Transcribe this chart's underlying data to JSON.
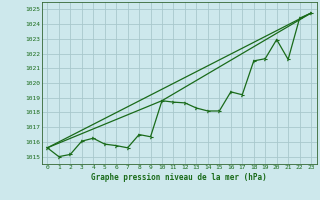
{
  "title": "Graphe pression niveau de la mer (hPa)",
  "background_color": "#cde8ec",
  "grid_color": "#a8c8cc",
  "line_color": "#1a6b1a",
  "text_color": "#1a6b1a",
  "xlim": [
    -0.5,
    23.5
  ],
  "ylim": [
    1014.5,
    1025.5
  ],
  "yticks": [
    1015,
    1016,
    1017,
    1018,
    1019,
    1020,
    1021,
    1022,
    1023,
    1024,
    1025
  ],
  "xticks": [
    0,
    1,
    2,
    3,
    4,
    5,
    6,
    7,
    8,
    9,
    10,
    11,
    12,
    13,
    14,
    15,
    16,
    17,
    18,
    19,
    20,
    21,
    22,
    23
  ],
  "data_x": [
    0,
    1,
    2,
    3,
    4,
    5,
    6,
    7,
    8,
    9,
    10,
    11,
    12,
    13,
    14,
    15,
    16,
    17,
    18,
    19,
    20,
    21,
    22,
    23
  ],
  "data_y": [
    1015.6,
    1015.0,
    1015.15,
    1016.05,
    1016.25,
    1015.85,
    1015.75,
    1015.6,
    1016.5,
    1016.35,
    1018.8,
    1018.7,
    1018.65,
    1018.3,
    1018.1,
    1018.1,
    1019.4,
    1019.2,
    1021.5,
    1021.65,
    1022.95,
    1021.6,
    1024.4,
    1024.75
  ],
  "trend_x": [
    0,
    23
  ],
  "trend_y": [
    1015.6,
    1024.75
  ],
  "trend2_x": [
    0,
    10,
    23
  ],
  "trend2_y": [
    1015.6,
    1018.8,
    1024.75
  ]
}
